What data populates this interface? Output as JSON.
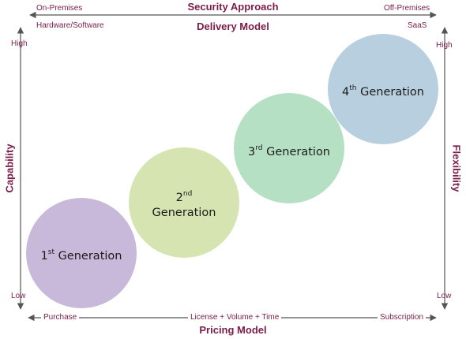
{
  "top": {
    "title": "Security Approach",
    "left_label": "On-Premises",
    "right_label": "Off-Premises",
    "left_sub": "Hardware/Software",
    "right_sub": "SaaS",
    "model": "Delivery Model"
  },
  "bottom": {
    "left_label": "Purchase",
    "center_label": "License + Volume + Time",
    "right_label": "Subscription",
    "model": "Pricing Model"
  },
  "left_axis": {
    "title": "Capability",
    "high": "High",
    "low": "Low"
  },
  "right_axis": {
    "title": "Flexibility",
    "high": "High",
    "low": "Low"
  },
  "generations": [
    {
      "num": "1",
      "sup": "st",
      "word": "Generation",
      "color": "#c8b8d9"
    },
    {
      "num": "2",
      "sup": "nd",
      "word": "Generation",
      "color": "#d6e4b2"
    },
    {
      "num": "3",
      "sup": "rd",
      "word": "Generation",
      "color": "#b5e0c3"
    },
    {
      "num": "4",
      "sup": "th",
      "word": "Generation",
      "color": "#b7cfde"
    }
  ],
  "colors": {
    "accent": "#7a1d4a",
    "arrow": "#555555"
  }
}
